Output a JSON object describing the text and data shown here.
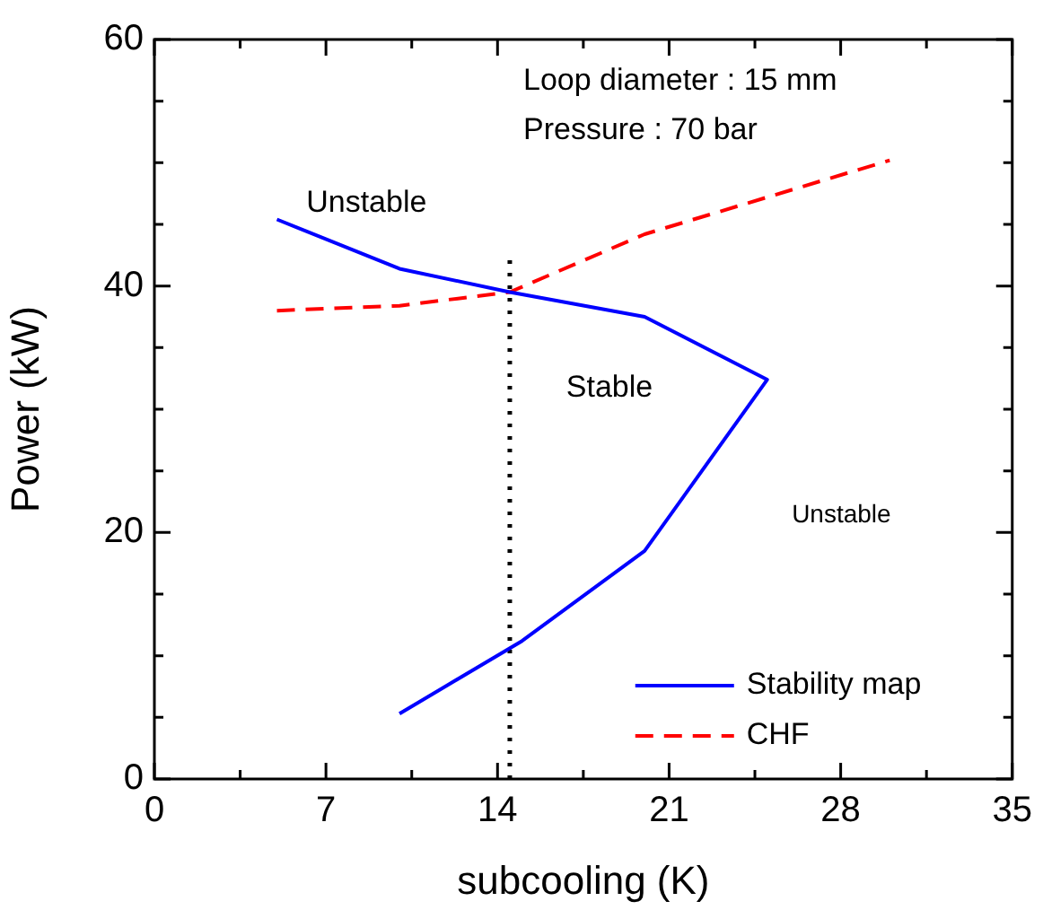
{
  "chart_data": {
    "type": "line",
    "xlabel": "subcooling (K)",
    "ylabel": "Power (kW)",
    "xlim": [
      0,
      35
    ],
    "ylim": [
      0,
      60
    ],
    "xticks": [
      0,
      {
        "value": 3.5,
        "label": null
      },
      7,
      {
        "value": 10.5,
        "label": null
      },
      14,
      {
        "value": 17.5,
        "label": null
      },
      21,
      {
        "value": 24.5,
        "label": null
      },
      28,
      {
        "value": 31.5,
        "label": null
      },
      35
    ],
    "yticks": [
      0,
      {
        "value": 5,
        "label": null
      },
      {
        "value": 10,
        "label": null
      },
      {
        "value": 15,
        "label": null
      },
      20,
      {
        "value": 25,
        "label": null
      },
      {
        "value": 30,
        "label": null
      },
      {
        "value": 35,
        "label": null
      },
      40,
      {
        "value": 45,
        "label": null
      },
      {
        "value": 50,
        "label": null
      },
      {
        "value": 55,
        "label": null
      },
      60
    ],
    "grid": false,
    "legend": "bottom right",
    "marker": "none",
    "series": [
      {
        "name": "Stability map",
        "color": "#0000ff",
        "line_style": "solid",
        "x": [
          5,
          10,
          14.5,
          20,
          25,
          20,
          15,
          10
        ],
        "values": [
          45.4,
          41.4,
          39.5,
          37.5,
          32.4,
          18.5,
          11.2,
          5.3
        ]
      },
      {
        "name": "CHF",
        "color": "#ff0000",
        "line_style": "dashed",
        "x": [
          5,
          10,
          14.5,
          20,
          30
        ],
        "values": [
          38.0,
          38.4,
          39.5,
          44.2,
          50.2
        ]
      },
      {
        "color": "#000000",
        "line_style": "dotted",
        "x": [
          14.5,
          14.5
        ],
        "values": [
          0,
          42.5
        ]
      }
    ],
    "annotations": [
      "Loop diameter : 15 mm",
      "Pressure : 70 bar",
      "Unstable",
      "Stable",
      "Unstable"
    ]
  }
}
